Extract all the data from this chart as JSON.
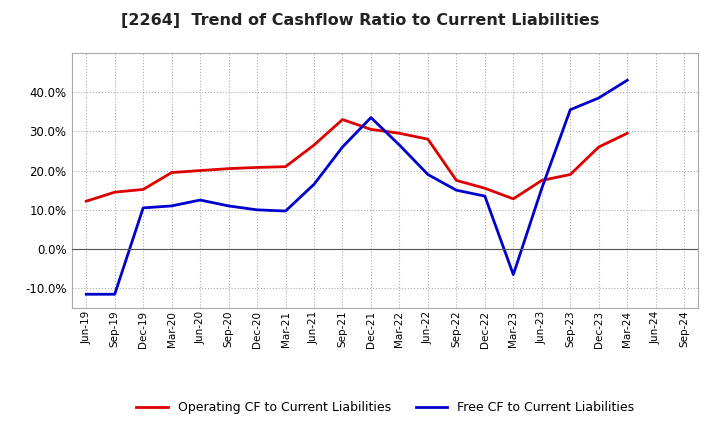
{
  "title": "[2264]  Trend of Cashflow Ratio to Current Liabilities",
  "x_labels": [
    "Jun-19",
    "Sep-19",
    "Dec-19",
    "Mar-20",
    "Jun-20",
    "Sep-20",
    "Dec-20",
    "Mar-21",
    "Jun-21",
    "Sep-21",
    "Dec-21",
    "Mar-22",
    "Jun-22",
    "Sep-22",
    "Dec-22",
    "Mar-23",
    "Jun-23",
    "Sep-23",
    "Dec-23",
    "Mar-24",
    "Jun-24",
    "Sep-24"
  ],
  "operating_cf": [
    0.122,
    0.145,
    0.152,
    0.195,
    0.2,
    0.205,
    0.208,
    0.21,
    0.265,
    0.33,
    0.305,
    0.295,
    0.28,
    0.175,
    0.155,
    0.128,
    0.175,
    0.19,
    0.26,
    0.295,
    null,
    null
  ],
  "free_cf": [
    -0.115,
    -0.115,
    0.105,
    0.11,
    0.125,
    0.11,
    0.1,
    0.097,
    0.165,
    0.26,
    0.335,
    0.265,
    0.19,
    0.15,
    0.135,
    -0.065,
    0.155,
    0.355,
    0.385,
    0.43,
    null,
    null
  ],
  "operating_color": "#dd0000",
  "free_color": "#0000cc",
  "ylim": [
    -0.15,
    0.5
  ],
  "yticks": [
    -0.1,
    0.0,
    0.1,
    0.2,
    0.3,
    0.4
  ],
  "background_color": "#ffffff",
  "grid_color": "#999999",
  "legend_labels": [
    "Operating CF to Current Liabilities",
    "Free CF to Current Liabilities"
  ]
}
